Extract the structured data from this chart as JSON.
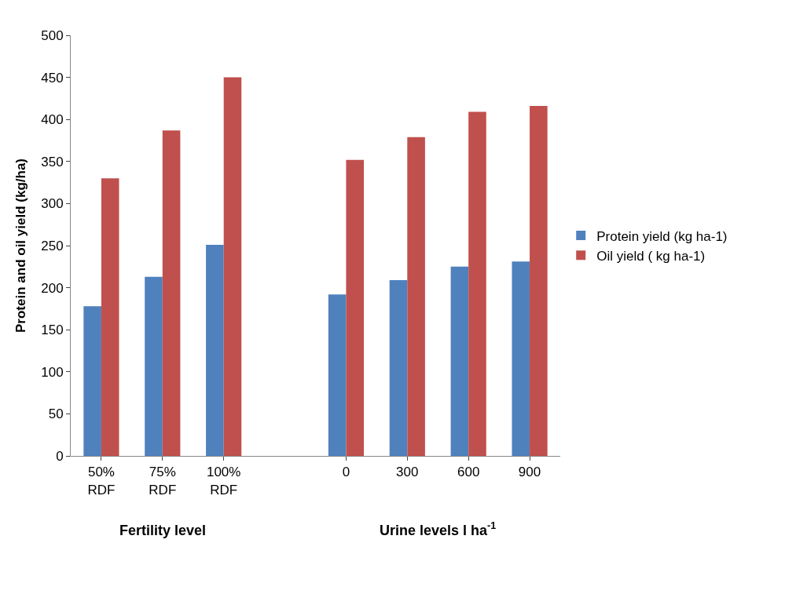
{
  "chart_data": {
    "type": "bar",
    "ylabel": "Protein and oil yield (kg/ha)",
    "categories": [
      "50% RDF",
      "75% RDF",
      "100% RDF",
      null,
      "0",
      "300",
      "600",
      "900"
    ],
    "series": [
      {
        "name": "Protein yield (kg ha-1)",
        "color": "#4f81bd",
        "values": [
          178,
          213,
          251,
          null,
          192,
          209,
          225,
          231
        ]
      },
      {
        "name": "Oil yield ( kg ha-1)",
        "color": "#c0504d",
        "values": [
          330,
          387,
          450,
          null,
          352,
          379,
          409,
          416
        ]
      }
    ],
    "annotations": [
      "Fertility level",
      "Urine levels l ha$^{-1}$"
    ],
    "ylim": [
      0,
      500
    ],
    "yticks": [
      0,
      50,
      100,
      150,
      200,
      250,
      300,
      350,
      400,
      450,
      500
    ],
    "legend": "right"
  }
}
